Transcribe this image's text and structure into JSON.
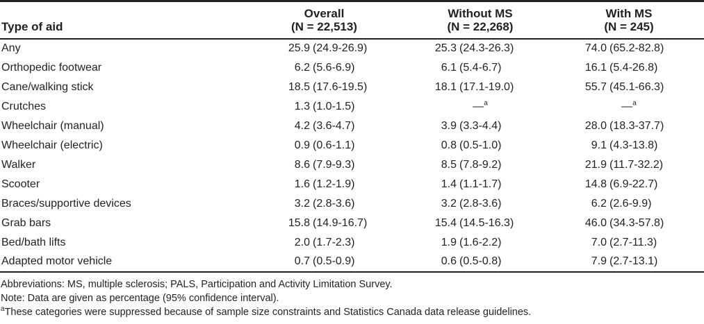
{
  "colors": {
    "background": "#ffffff",
    "text": "#231f20",
    "rule": "#231f20"
  },
  "table": {
    "columns": [
      {
        "label": "Type of aid",
        "sublabel": ""
      },
      {
        "label": "Overall",
        "sublabel": "(N = 22,513)"
      },
      {
        "label": "Without MS",
        "sublabel": "(N = 22,268)"
      },
      {
        "label": "With MS",
        "sublabel": "(N = 245)"
      }
    ],
    "suppressed_symbol": "—",
    "suppressed_marker": "a",
    "rows": [
      {
        "aid": "Any",
        "cells": [
          {
            "num": "25.9",
            "ci": "(24.9-26.9)"
          },
          {
            "num": "25.3",
            "ci": "(24.3-26.3)"
          },
          {
            "num": "74.0",
            "ci": "(65.2-82.8)"
          }
        ]
      },
      {
        "aid": "Orthopedic footwear",
        "cells": [
          {
            "num": "6.2",
            "ci": "(5.6-6.9)"
          },
          {
            "num": "6.1",
            "ci": "(5.4-6.7)"
          },
          {
            "num": "16.1",
            "ci": "(5.4-26.8)"
          }
        ]
      },
      {
        "aid": "Cane/walking stick",
        "cells": [
          {
            "num": "18.5",
            "ci": "(17.6-19.5)"
          },
          {
            "num": "18.1",
            "ci": "(17.1-19.0)"
          },
          {
            "num": "55.7",
            "ci": "(45.1-66.3)"
          }
        ]
      },
      {
        "aid": "Crutches",
        "cells": [
          {
            "num": "1.3",
            "ci": "(1.0-1.5)"
          },
          {
            "suppressed": true
          },
          {
            "suppressed": true
          }
        ]
      },
      {
        "aid": "Wheelchair (manual)",
        "cells": [
          {
            "num": "4.2",
            "ci": "(3.6-4.7)"
          },
          {
            "num": "3.9",
            "ci": "(3.3-4.4)"
          },
          {
            "num": "28.0",
            "ci": "(18.3-37.7)"
          }
        ]
      },
      {
        "aid": "Wheelchair (electric)",
        "cells": [
          {
            "num": "0.9",
            "ci": "(0.6-1.1)"
          },
          {
            "num": "0.8",
            "ci": "(0.5-1.0)"
          },
          {
            "num": "9.1",
            "ci": "(4.3-13.8)"
          }
        ]
      },
      {
        "aid": "Walker",
        "cells": [
          {
            "num": "8.6",
            "ci": "(7.9-9.3)"
          },
          {
            "num": "8.5",
            "ci": "(7.8-9.2)"
          },
          {
            "num": "21.9",
            "ci": "(11.7-32.2)"
          }
        ]
      },
      {
        "aid": "Scooter",
        "cells": [
          {
            "num": "1.6",
            "ci": "(1.2-1.9)"
          },
          {
            "num": "1.4",
            "ci": "(1.1-1.7)"
          },
          {
            "num": "14.8",
            "ci": "(6.9-22.7)"
          }
        ]
      },
      {
        "aid": "Braces/supportive devices",
        "cells": [
          {
            "num": "3.2",
            "ci": "(2.8-3.6)"
          },
          {
            "num": "3.2",
            "ci": "(2.8-3.6)"
          },
          {
            "num": "6.2",
            "ci": "(2.6-9.9)"
          }
        ]
      },
      {
        "aid": "Grab bars",
        "cells": [
          {
            "num": "15.8",
            "ci": "(14.9-16.7)"
          },
          {
            "num": "15.4",
            "ci": "(14.5-16.3)"
          },
          {
            "num": "46.0",
            "ci": "(34.3-57.8)"
          }
        ]
      },
      {
        "aid": "Bed/bath lifts",
        "cells": [
          {
            "num": "2.0",
            "ci": "(1.7-2.3)"
          },
          {
            "num": "1.9",
            "ci": "(1.6-2.2)"
          },
          {
            "num": "7.0",
            "ci": "(2.7-11.3)"
          }
        ]
      },
      {
        "aid": "Adapted motor vehicle",
        "cells": [
          {
            "num": "0.7",
            "ci": "(0.5-0.9)"
          },
          {
            "num": "0.6",
            "ci": "(0.5-0.8)"
          },
          {
            "num": "7.9",
            "ci": "(2.7-13.1)"
          }
        ]
      }
    ]
  },
  "footnotes": {
    "abbreviations": "Abbreviations: MS, multiple sclerosis; PALS, Participation and Activity Limitation Survey.",
    "note": "Note: Data are given as percentage (95% confidence interval).",
    "suppression_marker": "a",
    "suppression_text": "These categories were suppressed because of sample size constraints and Statistics Canada data release guidelines."
  }
}
